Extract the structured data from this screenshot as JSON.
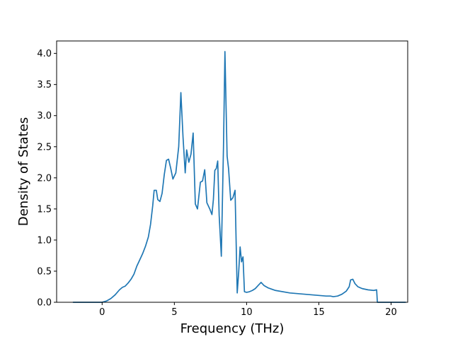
{
  "chart_data": {
    "type": "line",
    "title": "",
    "xlabel": "Frequency (THz)",
    "ylabel": "Density of States",
    "xlim": [
      -3.15,
      21.15
    ],
    "ylim": [
      0,
      4.2
    ],
    "xticks": [
      0,
      5,
      10,
      15,
      20
    ],
    "yticks": [
      0.0,
      0.5,
      1.0,
      1.5,
      2.0,
      2.5,
      3.0,
      3.5,
      4.0
    ],
    "xtick_labels": [
      "0",
      "5",
      "10",
      "15",
      "20"
    ],
    "ytick_labels": [
      "0.0",
      "0.5",
      "1.0",
      "1.5",
      "2.0",
      "2.5",
      "3.0",
      "3.5",
      "4.0"
    ],
    "grid": false,
    "legend": "none",
    "series": [
      {
        "color": "#1f77b4",
        "x": [
          -2.0,
          -1.0,
          0.0,
          0.3,
          0.6,
          0.9,
          1.2,
          1.4,
          1.6,
          1.8,
          2.0,
          2.2,
          2.4,
          2.6,
          2.8,
          3.0,
          3.2,
          3.35,
          3.5,
          3.6,
          3.75,
          3.85,
          4.0,
          4.15,
          4.3,
          4.45,
          4.6,
          4.75,
          4.9,
          5.1,
          5.3,
          5.45,
          5.6,
          5.75,
          5.85,
          6.0,
          6.15,
          6.3,
          6.45,
          6.6,
          6.8,
          6.95,
          7.1,
          7.25,
          7.45,
          7.6,
          7.7,
          7.8,
          7.9,
          8.0,
          8.1,
          8.25,
          8.4,
          8.5,
          8.65,
          8.75,
          8.9,
          9.05,
          9.2,
          9.35,
          9.45,
          9.55,
          9.65,
          9.75,
          9.85,
          10.0,
          10.2,
          10.4,
          10.6,
          10.8,
          11.0,
          11.2,
          11.5,
          12.0,
          13.0,
          14.0,
          15.0,
          15.5,
          15.8,
          16.0,
          16.3,
          16.6,
          16.9,
          17.1,
          17.2,
          17.35,
          17.5,
          17.7,
          18.0,
          18.4,
          18.8,
          19.0,
          19.05,
          19.2,
          20.0,
          21.0
        ],
        "y": [
          0.0,
          0.0,
          0.0,
          0.02,
          0.06,
          0.12,
          0.2,
          0.24,
          0.26,
          0.31,
          0.37,
          0.45,
          0.58,
          0.68,
          0.78,
          0.9,
          1.05,
          1.25,
          1.55,
          1.8,
          1.8,
          1.65,
          1.62,
          1.75,
          2.05,
          2.28,
          2.3,
          2.15,
          1.98,
          2.08,
          2.5,
          3.37,
          2.65,
          2.08,
          2.45,
          2.25,
          2.38,
          2.72,
          1.58,
          1.5,
          1.93,
          1.95,
          2.13,
          1.6,
          1.5,
          1.41,
          1.65,
          2.12,
          2.15,
          2.27,
          1.4,
          0.74,
          2.5,
          4.03,
          2.35,
          2.15,
          1.64,
          1.68,
          1.8,
          0.15,
          0.48,
          0.89,
          0.65,
          0.73,
          0.17,
          0.16,
          0.17,
          0.19,
          0.22,
          0.27,
          0.32,
          0.27,
          0.23,
          0.19,
          0.15,
          0.13,
          0.11,
          0.1,
          0.1,
          0.09,
          0.1,
          0.13,
          0.18,
          0.25,
          0.36,
          0.37,
          0.3,
          0.25,
          0.22,
          0.2,
          0.19,
          0.2,
          0.0,
          0.0,
          0.0,
          0.0
        ]
      }
    ]
  }
}
